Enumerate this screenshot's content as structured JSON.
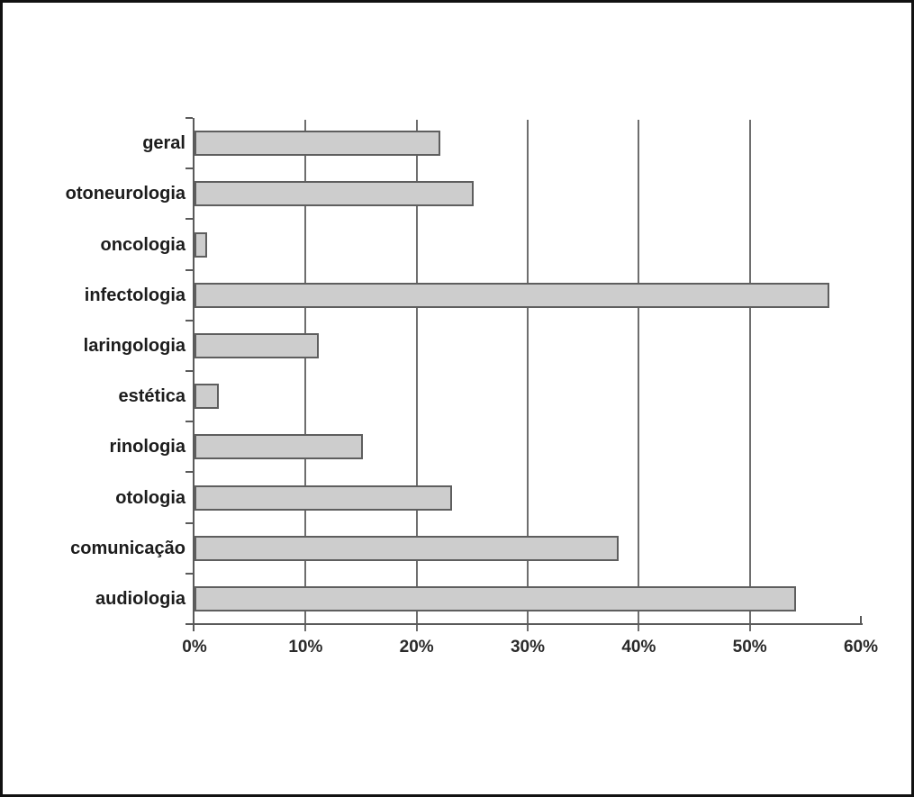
{
  "figure": {
    "background_color": "#ffffff",
    "frame_border_color": "#111111",
    "title": ""
  },
  "chart_data": {
    "type": "bar",
    "orientation": "horizontal",
    "title": "",
    "xlabel": "",
    "ylabel": "",
    "categories": [
      "geral",
      "otoneurologia",
      "oncologia",
      "infectologia",
      "laringologia",
      "estética",
      "rinologia",
      "otologia",
      "comunicação",
      "audiologia"
    ],
    "values": [
      22,
      25,
      1,
      57,
      11,
      2,
      15,
      23,
      38,
      54
    ],
    "unit": "%",
    "xlim": [
      0,
      60
    ],
    "x_tick_values": [
      0,
      10,
      20,
      30,
      40,
      50,
      60
    ],
    "x_tick_labels": [
      "0%",
      "10%",
      "20%",
      "30%",
      "40%",
      "50%",
      "60%"
    ],
    "gridlines": {
      "vertical_at": [
        10,
        20,
        30,
        40,
        50
      ],
      "color": "#6e6e6e"
    },
    "legend": "none",
    "bar_fill_color": "#cdcdcd",
    "bar_border_color": "#5e5e5e"
  }
}
